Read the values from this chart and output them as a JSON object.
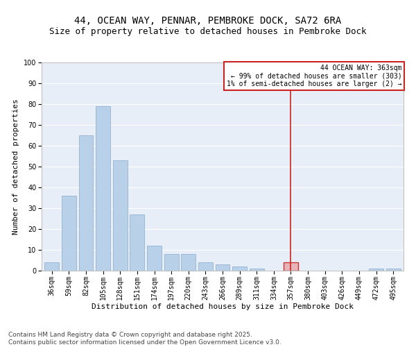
{
  "title1": "44, OCEAN WAY, PENNAR, PEMBROKE DOCK, SA72 6RA",
  "title2": "Size of property relative to detached houses in Pembroke Dock",
  "xlabel": "Distribution of detached houses by size in Pembroke Dock",
  "ylabel": "Number of detached properties",
  "categories": [
    "36sqm",
    "59sqm",
    "82sqm",
    "105sqm",
    "128sqm",
    "151sqm",
    "174sqm",
    "197sqm",
    "220sqm",
    "243sqm",
    "266sqm",
    "289sqm",
    "311sqm",
    "334sqm",
    "357sqm",
    "380sqm",
    "403sqm",
    "426sqm",
    "449sqm",
    "472sqm",
    "495sqm"
  ],
  "values": [
    4,
    36,
    65,
    79,
    53,
    27,
    12,
    8,
    8,
    4,
    3,
    2,
    1,
    0,
    4,
    0,
    0,
    0,
    0,
    1,
    1
  ],
  "bar_color": "#B8D0E8",
  "bar_edge_color": "#88AACE",
  "highlight_bar_index": 14,
  "highlight_bar_color": "#E8B4B8",
  "highlight_bar_edge_color": "#CC3333",
  "vline_x_index": 14,
  "vline_color": "#CC2222",
  "annotation_title": "44 OCEAN WAY: 363sqm",
  "annotation_line1": "← 99% of detached houses are smaller (303)",
  "annotation_line2": "1% of semi-detached houses are larger (2) →",
  "annotation_box_color": "#CC2222",
  "ylim": [
    0,
    100
  ],
  "yticks": [
    0,
    10,
    20,
    30,
    40,
    50,
    60,
    70,
    80,
    90,
    100
  ],
  "background_color": "#E8EEF8",
  "footer1": "Contains HM Land Registry data © Crown copyright and database right 2025.",
  "footer2": "Contains public sector information licensed under the Open Government Licence v3.0.",
  "title_fontsize": 10,
  "subtitle_fontsize": 9,
  "axis_label_fontsize": 8,
  "tick_fontsize": 7,
  "annotation_fontsize": 7,
  "footer_fontsize": 6.5
}
